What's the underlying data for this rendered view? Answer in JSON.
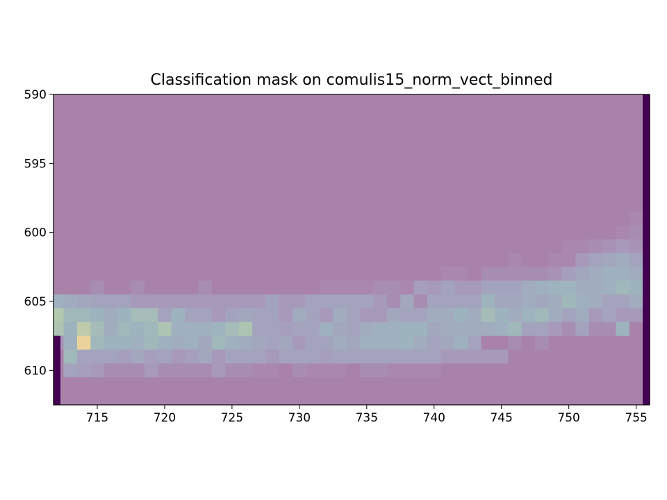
{
  "chart_data": {
    "type": "heatmap",
    "title": "Classification mask on comulis15_norm_vect_binned",
    "xlabel": "",
    "ylabel": "",
    "xlim": [
      711.75,
      756
    ],
    "ylim": [
      612.5,
      590
    ],
    "y_inverted": true,
    "x_ticks": [
      715,
      720,
      725,
      730,
      735,
      740,
      745,
      750,
      755
    ],
    "y_ticks": [
      590,
      595,
      600,
      605,
      610
    ],
    "grid": false,
    "colormap": "viridis",
    "mask_overlay_color": "#e0c8d8",
    "mask_overlay_opacity": 0.65,
    "x_first_column": 712,
    "y_first_row": 590,
    "values_note": "Rows y=590..612, columns x=712..755; intensity 0-1 (viridis).",
    "values": [
      [
        0,
        0,
        0,
        0,
        0,
        0,
        0,
        0,
        0,
        0,
        0,
        0,
        0,
        0,
        0,
        0,
        0,
        0,
        0,
        0,
        0,
        0,
        0,
        0,
        0,
        0,
        0,
        0,
        0,
        0,
        0,
        0,
        0,
        0,
        0,
        0,
        0,
        0,
        0,
        0,
        0,
        0,
        0,
        0
      ],
      [
        0,
        0,
        0,
        0,
        0,
        0,
        0,
        0,
        0,
        0,
        0,
        0,
        0,
        0,
        0,
        0,
        0,
        0,
        0,
        0,
        0,
        0,
        0,
        0,
        0,
        0,
        0,
        0,
        0,
        0,
        0,
        0,
        0,
        0,
        0,
        0,
        0,
        0,
        0,
        0,
        0,
        0,
        0,
        0
      ],
      [
        0,
        0,
        0,
        0,
        0,
        0,
        0,
        0,
        0,
        0,
        0,
        0,
        0,
        0,
        0,
        0,
        0,
        0,
        0,
        0,
        0,
        0,
        0,
        0,
        0,
        0,
        0,
        0,
        0,
        0,
        0,
        0,
        0,
        0,
        0,
        0,
        0,
        0,
        0,
        0,
        0,
        0,
        0,
        0
      ],
      [
        0,
        0,
        0,
        0,
        0,
        0,
        0,
        0,
        0,
        0,
        0,
        0,
        0,
        0,
        0,
        0,
        0,
        0,
        0,
        0,
        0,
        0,
        0,
        0,
        0,
        0,
        0,
        0,
        0,
        0,
        0,
        0,
        0,
        0,
        0,
        0,
        0,
        0,
        0,
        0,
        0,
        0,
        0,
        0
      ],
      [
        0,
        0,
        0,
        0,
        0,
        0,
        0,
        0,
        0,
        0,
        0,
        0,
        0,
        0,
        0,
        0,
        0,
        0,
        0,
        0,
        0,
        0,
        0,
        0,
        0,
        0,
        0,
        0,
        0,
        0,
        0,
        0,
        0,
        0,
        0,
        0,
        0,
        0,
        0,
        0,
        0,
        0,
        0,
        0
      ],
      [
        0,
        0,
        0,
        0,
        0,
        0,
        0,
        0,
        0,
        0,
        0,
        0,
        0,
        0,
        0,
        0,
        0,
        0,
        0,
        0,
        0,
        0,
        0,
        0,
        0,
        0,
        0,
        0,
        0,
        0,
        0,
        0,
        0,
        0,
        0,
        0,
        0,
        0,
        0,
        0,
        0,
        0,
        0,
        0
      ],
      [
        0,
        0,
        0,
        0,
        0,
        0,
        0,
        0,
        0,
        0,
        0,
        0,
        0,
        0,
        0,
        0,
        0,
        0,
        0,
        0,
        0,
        0,
        0,
        0,
        0,
        0,
        0,
        0,
        0,
        0,
        0,
        0,
        0,
        0,
        0,
        0,
        0,
        0,
        0,
        0,
        0,
        0,
        0,
        0
      ],
      [
        0,
        0,
        0,
        0,
        0,
        0,
        0,
        0,
        0,
        0,
        0,
        0,
        0,
        0,
        0,
        0,
        0,
        0,
        0,
        0,
        0,
        0,
        0,
        0,
        0,
        0,
        0,
        0,
        0,
        0,
        0,
        0,
        0,
        0,
        0,
        0,
        0,
        0,
        0,
        0,
        0,
        0,
        0,
        0
      ],
      [
        0,
        0,
        0,
        0,
        0,
        0,
        0,
        0,
        0,
        0,
        0,
        0,
        0,
        0,
        0,
        0,
        0,
        0,
        0,
        0,
        0,
        0,
        0,
        0,
        0,
        0,
        0,
        0,
        0,
        0,
        0,
        0,
        0,
        0,
        0,
        0,
        0,
        0,
        0,
        0,
        0,
        0,
        0,
        0
      ],
      [
        0,
        0,
        0,
        0,
        0,
        0,
        0,
        0,
        0,
        0,
        0,
        0,
        0,
        0,
        0,
        0,
        0,
        0,
        0,
        0,
        0,
        0,
        0,
        0,
        0,
        0,
        0,
        0,
        0,
        0,
        0,
        0,
        0,
        0,
        0,
        0,
        0,
        0,
        0,
        0,
        0,
        0,
        0,
        0.05
      ],
      [
        0,
        0,
        0,
        0,
        0,
        0,
        0,
        0,
        0,
        0,
        0,
        0,
        0,
        0,
        0,
        0,
        0,
        0,
        0,
        0,
        0,
        0,
        0,
        0,
        0,
        0,
        0,
        0,
        0,
        0,
        0,
        0,
        0,
        0,
        0,
        0,
        0,
        0,
        0,
        0,
        0,
        0,
        0.05,
        0.1
      ],
      [
        0,
        0,
        0,
        0,
        0,
        0,
        0,
        0,
        0,
        0,
        0,
        0,
        0,
        0,
        0,
        0,
        0,
        0,
        0,
        0,
        0,
        0,
        0,
        0,
        0,
        0,
        0,
        0,
        0,
        0,
        0,
        0,
        0,
        0,
        0,
        0,
        0,
        0,
        0.05,
        0.05,
        0.1,
        0.15,
        0.2,
        0.15
      ],
      [
        0,
        0,
        0,
        0,
        0,
        0,
        0,
        0,
        0,
        0,
        0,
        0,
        0,
        0,
        0,
        0,
        0,
        0,
        0,
        0,
        0,
        0,
        0,
        0,
        0,
        0,
        0,
        0,
        0,
        0,
        0,
        0,
        0,
        0,
        0.05,
        0,
        0,
        0.05,
        0.05,
        0.2,
        0.3,
        0.35,
        0.4,
        0.3
      ],
      [
        0,
        0,
        0,
        0,
        0,
        0,
        0,
        0,
        0,
        0,
        0,
        0,
        0,
        0,
        0,
        0,
        0,
        0,
        0,
        0,
        0,
        0,
        0,
        0,
        0,
        0,
        0,
        0,
        0,
        0.05,
        0.05,
        0,
        0.1,
        0.1,
        0.1,
        0.1,
        0.1,
        0.15,
        0.25,
        0.35,
        0.4,
        0.45,
        0.45,
        0.4
      ],
      [
        0,
        0,
        0,
        0.1,
        0,
        0,
        0.1,
        0,
        0,
        0,
        0,
        0.1,
        0,
        0,
        0,
        0,
        0,
        0,
        0,
        0,
        0.05,
        0.05,
        0.05,
        0.05,
        0.1,
        0.1,
        0.05,
        0.25,
        0.2,
        0.3,
        0.2,
        0.2,
        0.3,
        0.3,
        0.3,
        0.4,
        0.45,
        0.5,
        0.5,
        0.4,
        0.4,
        0.45,
        0.55,
        0.5
      ],
      [
        0.45,
        0.4,
        0.35,
        0.3,
        0.3,
        0.3,
        0.2,
        0.2,
        0.2,
        0.2,
        0.2,
        0.2,
        0.2,
        0.2,
        0.2,
        0.2,
        0.3,
        0.2,
        0.2,
        0.3,
        0.3,
        0.3,
        0.3,
        0.3,
        0.2,
        0.1,
        0.35,
        0.1,
        0.3,
        0.3,
        0.3,
        0.3,
        0.5,
        0.35,
        0.35,
        0.4,
        0.35,
        0.4,
        0.55,
        0.45,
        0.4,
        0.3,
        0.3,
        0.4
      ],
      [
        0.75,
        0.55,
        0.55,
        0.5,
        0.4,
        0.5,
        0.6,
        0.6,
        0.3,
        0.5,
        0.3,
        0.3,
        0.2,
        0.3,
        0.35,
        0.3,
        0.3,
        0.2,
        0.4,
        0.3,
        0.2,
        0.4,
        0.3,
        0.2,
        0.2,
        0.35,
        0.3,
        0.3,
        0.4,
        0.4,
        0.5,
        0.4,
        0.6,
        0.5,
        0.4,
        0.5,
        0.55,
        0.4,
        0.3,
        0.4,
        0.2,
        0.3,
        0.2,
        0.2
      ],
      [
        0.7,
        0.5,
        0.8,
        0.6,
        0.4,
        0.55,
        0.5,
        0.55,
        0.7,
        0.45,
        0.45,
        0.45,
        0.5,
        0.6,
        0.7,
        0.3,
        0.3,
        0.25,
        0.3,
        0.3,
        0.45,
        0.35,
        0.3,
        0.4,
        0.45,
        0.45,
        0.5,
        0.5,
        0.35,
        0.4,
        0.4,
        0.4,
        0.4,
        0.45,
        0.55,
        0.3,
        0.3,
        0.2,
        0.1,
        0.3,
        0.1,
        0.1,
        0.5,
        0
      ],
      [
        0.15,
        0.45,
        1.0,
        0.55,
        0.5,
        0.5,
        0.45,
        0.55,
        0.45,
        0.4,
        0.45,
        0.35,
        0.55,
        0.45,
        0.4,
        0.35,
        0.3,
        0.35,
        0.2,
        0.3,
        0.3,
        0.4,
        0.35,
        0.45,
        0.45,
        0.45,
        0.5,
        0.4,
        0.3,
        0.35,
        0.45,
        0.3,
        0,
        0,
        0.1,
        0,
        0.1,
        0,
        0,
        0,
        0,
        0,
        0,
        0
      ],
      [
        0,
        0.55,
        0.3,
        0.3,
        0.3,
        0.25,
        0.35,
        0.25,
        0.3,
        0.2,
        0.25,
        0.35,
        0.2,
        0.3,
        0.3,
        0.3,
        0.2,
        0.3,
        0.3,
        0.3,
        0.25,
        0.3,
        0.3,
        0.3,
        0.3,
        0.3,
        0.3,
        0.3,
        0.3,
        0.2,
        0.2,
        0.2,
        0.2,
        0.2,
        0,
        0,
        0,
        0,
        0,
        0,
        0,
        0,
        0,
        0
      ],
      [
        0,
        0.3,
        0.25,
        0.2,
        0.1,
        0.1,
        0.1,
        0.2,
        0.1,
        0.1,
        0.1,
        0.1,
        0.2,
        0.1,
        0.1,
        0.05,
        0.05,
        0,
        0.1,
        0.05,
        0.05,
        0.05,
        0,
        0.1,
        0.1,
        0.05,
        0.05,
        0.05,
        0.05,
        0,
        0,
        0,
        0,
        0,
        0,
        0,
        0,
        0,
        0,
        0,
        0,
        0,
        0,
        0
      ],
      [
        0,
        0,
        0,
        0,
        0,
        0,
        0,
        0,
        0,
        0,
        0,
        0,
        0,
        0,
        0,
        0,
        0,
        0,
        0,
        0,
        0,
        0,
        0,
        0,
        0,
        0,
        0,
        0,
        0,
        0,
        0,
        0,
        0,
        0,
        0,
        0,
        0,
        0,
        0,
        0,
        0,
        0,
        0,
        0
      ],
      [
        0,
        0,
        0,
        0,
        0,
        0,
        0,
        0,
        0,
        0,
        0,
        0,
        0,
        0,
        0,
        0,
        0,
        0,
        0,
        0,
        0,
        0,
        0,
        0,
        0,
        0,
        0,
        0,
        0,
        0,
        0,
        0,
        0,
        0,
        0,
        0,
        0,
        0,
        0,
        0,
        0,
        0,
        0,
        0
      ]
    ]
  }
}
